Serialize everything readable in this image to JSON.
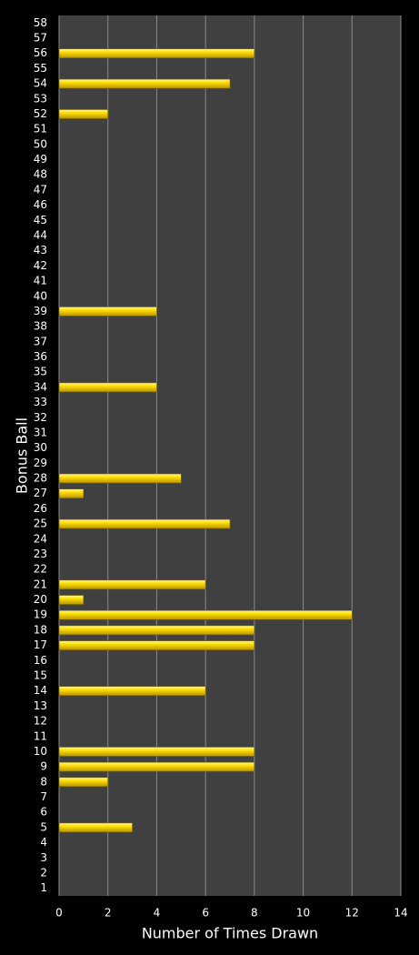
{
  "chart_data": {
    "type": "barh",
    "x_label": "Number of Times Drawn",
    "y_label": "Bonus Ball",
    "categories": [
      "1",
      "2",
      "3",
      "4",
      "5",
      "6",
      "7",
      "8",
      "9",
      "10",
      "11",
      "12",
      "13",
      "14",
      "15",
      "16",
      "17",
      "18",
      "19",
      "20",
      "21",
      "22",
      "23",
      "24",
      "25",
      "26",
      "27",
      "28",
      "29",
      "30",
      "31",
      "32",
      "33",
      "34",
      "35",
      "36",
      "37",
      "38",
      "39",
      "40",
      "41",
      "42",
      "43",
      "44",
      "45",
      "46",
      "47",
      "48",
      "49",
      "50",
      "51",
      "52",
      "53",
      "54",
      "55",
      "56",
      "57",
      "58"
    ],
    "values": [
      0,
      0,
      0,
      0,
      3,
      0,
      0,
      2,
      8,
      8,
      0,
      0,
      0,
      6,
      0,
      0,
      8,
      8,
      12,
      1,
      6,
      0,
      0,
      0,
      7,
      0,
      1,
      5,
      0,
      0,
      0,
      0,
      0,
      4,
      0,
      0,
      0,
      0,
      4,
      0,
      0,
      0,
      0,
      0,
      0,
      0,
      0,
      0,
      0,
      0,
      0,
      2,
      0,
      7,
      0,
      8,
      0,
      0
    ],
    "color": "#f5d800",
    "xlim": [
      0,
      14
    ],
    "xticks": [
      0,
      2,
      4,
      6,
      8,
      10,
      12,
      14
    ],
    "grid": true
  }
}
